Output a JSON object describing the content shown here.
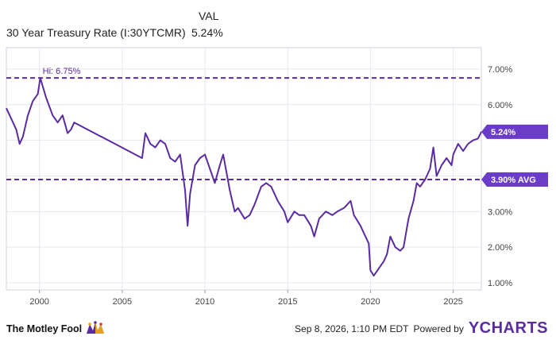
{
  "header": {
    "val_label": "VAL",
    "series_name": "30 Year Treasury Rate (I:30YTCMR)",
    "series_value": "5.24%"
  },
  "footer": {
    "brand": "The Motley Fool",
    "timestamp": "Sep 8, 2026, 1:10 PM EDT",
    "powered_by": "Powered by",
    "provider": "YCHARTS"
  },
  "colors": {
    "line": "#5a2ca0",
    "accent": "#6a3cc8",
    "grid": "#e6e6ef"
  },
  "chart_data": {
    "type": "line",
    "series": [
      {
        "name": "30 Year Treasury Rate (I:30YTCMR)",
        "x": [
          1998.0,
          1998.3,
          1998.6,
          1998.8,
          1999.0,
          1999.3,
          1999.6,
          1999.9,
          2000.05,
          2000.4,
          2000.8,
          2001.1,
          2001.4,
          2001.7,
          2001.9,
          2002.1,
          2006.2,
          2006.4,
          2006.7,
          2007.0,
          2007.3,
          2007.6,
          2007.9,
          2008.2,
          2008.5,
          2008.8,
          2008.95,
          2009.1,
          2009.4,
          2009.7,
          2010.0,
          2010.3,
          2010.6,
          2010.9,
          2011.1,
          2011.5,
          2011.8,
          2012.0,
          2012.4,
          2012.7,
          2013.0,
          2013.4,
          2013.7,
          2014.0,
          2014.4,
          2014.8,
          2015.0,
          2015.4,
          2015.7,
          2016.0,
          2016.4,
          2016.6,
          2016.9,
          2017.3,
          2017.7,
          2018.0,
          2018.4,
          2018.8,
          2019.0,
          2019.4,
          2019.7,
          2019.9,
          2020.0,
          2020.2,
          2020.5,
          2020.8,
          2021.0,
          2021.2,
          2021.5,
          2021.8,
          2022.0,
          2022.3,
          2022.6,
          2022.8,
          2023.0,
          2023.3,
          2023.6,
          2023.8,
          2024.0,
          2024.3,
          2024.6,
          2024.9,
          2025.0,
          2025.3,
          2025.6,
          2025.9,
          2026.2,
          2026.5,
          2026.7
        ],
        "y": [
          5.9,
          5.6,
          5.3,
          4.9,
          5.1,
          5.7,
          6.1,
          6.3,
          6.75,
          6.2,
          5.7,
          5.5,
          5.7,
          5.2,
          5.3,
          5.5,
          4.5,
          5.2,
          4.9,
          4.8,
          5.0,
          4.9,
          4.5,
          4.4,
          4.6,
          3.6,
          2.6,
          3.5,
          4.3,
          4.5,
          4.6,
          4.2,
          3.8,
          4.3,
          4.6,
          3.6,
          3.0,
          3.1,
          2.8,
          2.9,
          3.2,
          3.7,
          3.8,
          3.7,
          3.3,
          3.0,
          2.7,
          3.0,
          2.9,
          2.9,
          2.6,
          2.3,
          2.8,
          3.0,
          2.9,
          3.0,
          3.1,
          3.3,
          2.9,
          2.6,
          2.3,
          2.1,
          1.35,
          1.2,
          1.4,
          1.6,
          1.8,
          2.3,
          2.0,
          1.9,
          2.0,
          2.8,
          3.3,
          3.8,
          3.7,
          3.9,
          4.2,
          4.8,
          4.0,
          4.3,
          4.5,
          4.3,
          4.6,
          4.9,
          4.7,
          4.9,
          5.0,
          5.05,
          5.24
        ]
      }
    ],
    "reference_lines": [
      {
        "label": "Hi: 6.75%",
        "value": 6.75
      },
      {
        "label": "3.90% AVG",
        "value": 3.9
      }
    ],
    "end_label": "5.24%",
    "x_ticks": [
      2000,
      2005,
      2010,
      2015,
      2020,
      2025
    ],
    "y_ticks": [
      1,
      2,
      3,
      4,
      5,
      6,
      7
    ],
    "y_tick_labels": [
      "1.00%",
      "2.00%",
      "3.00%",
      "",
      "",
      "6.00%",
      "7.00%"
    ],
    "xlim": [
      1998.0,
      2026.7
    ],
    "ylim": [
      0.8,
      7.6
    ],
    "grid": true,
    "xlabel": "",
    "ylabel": ""
  }
}
